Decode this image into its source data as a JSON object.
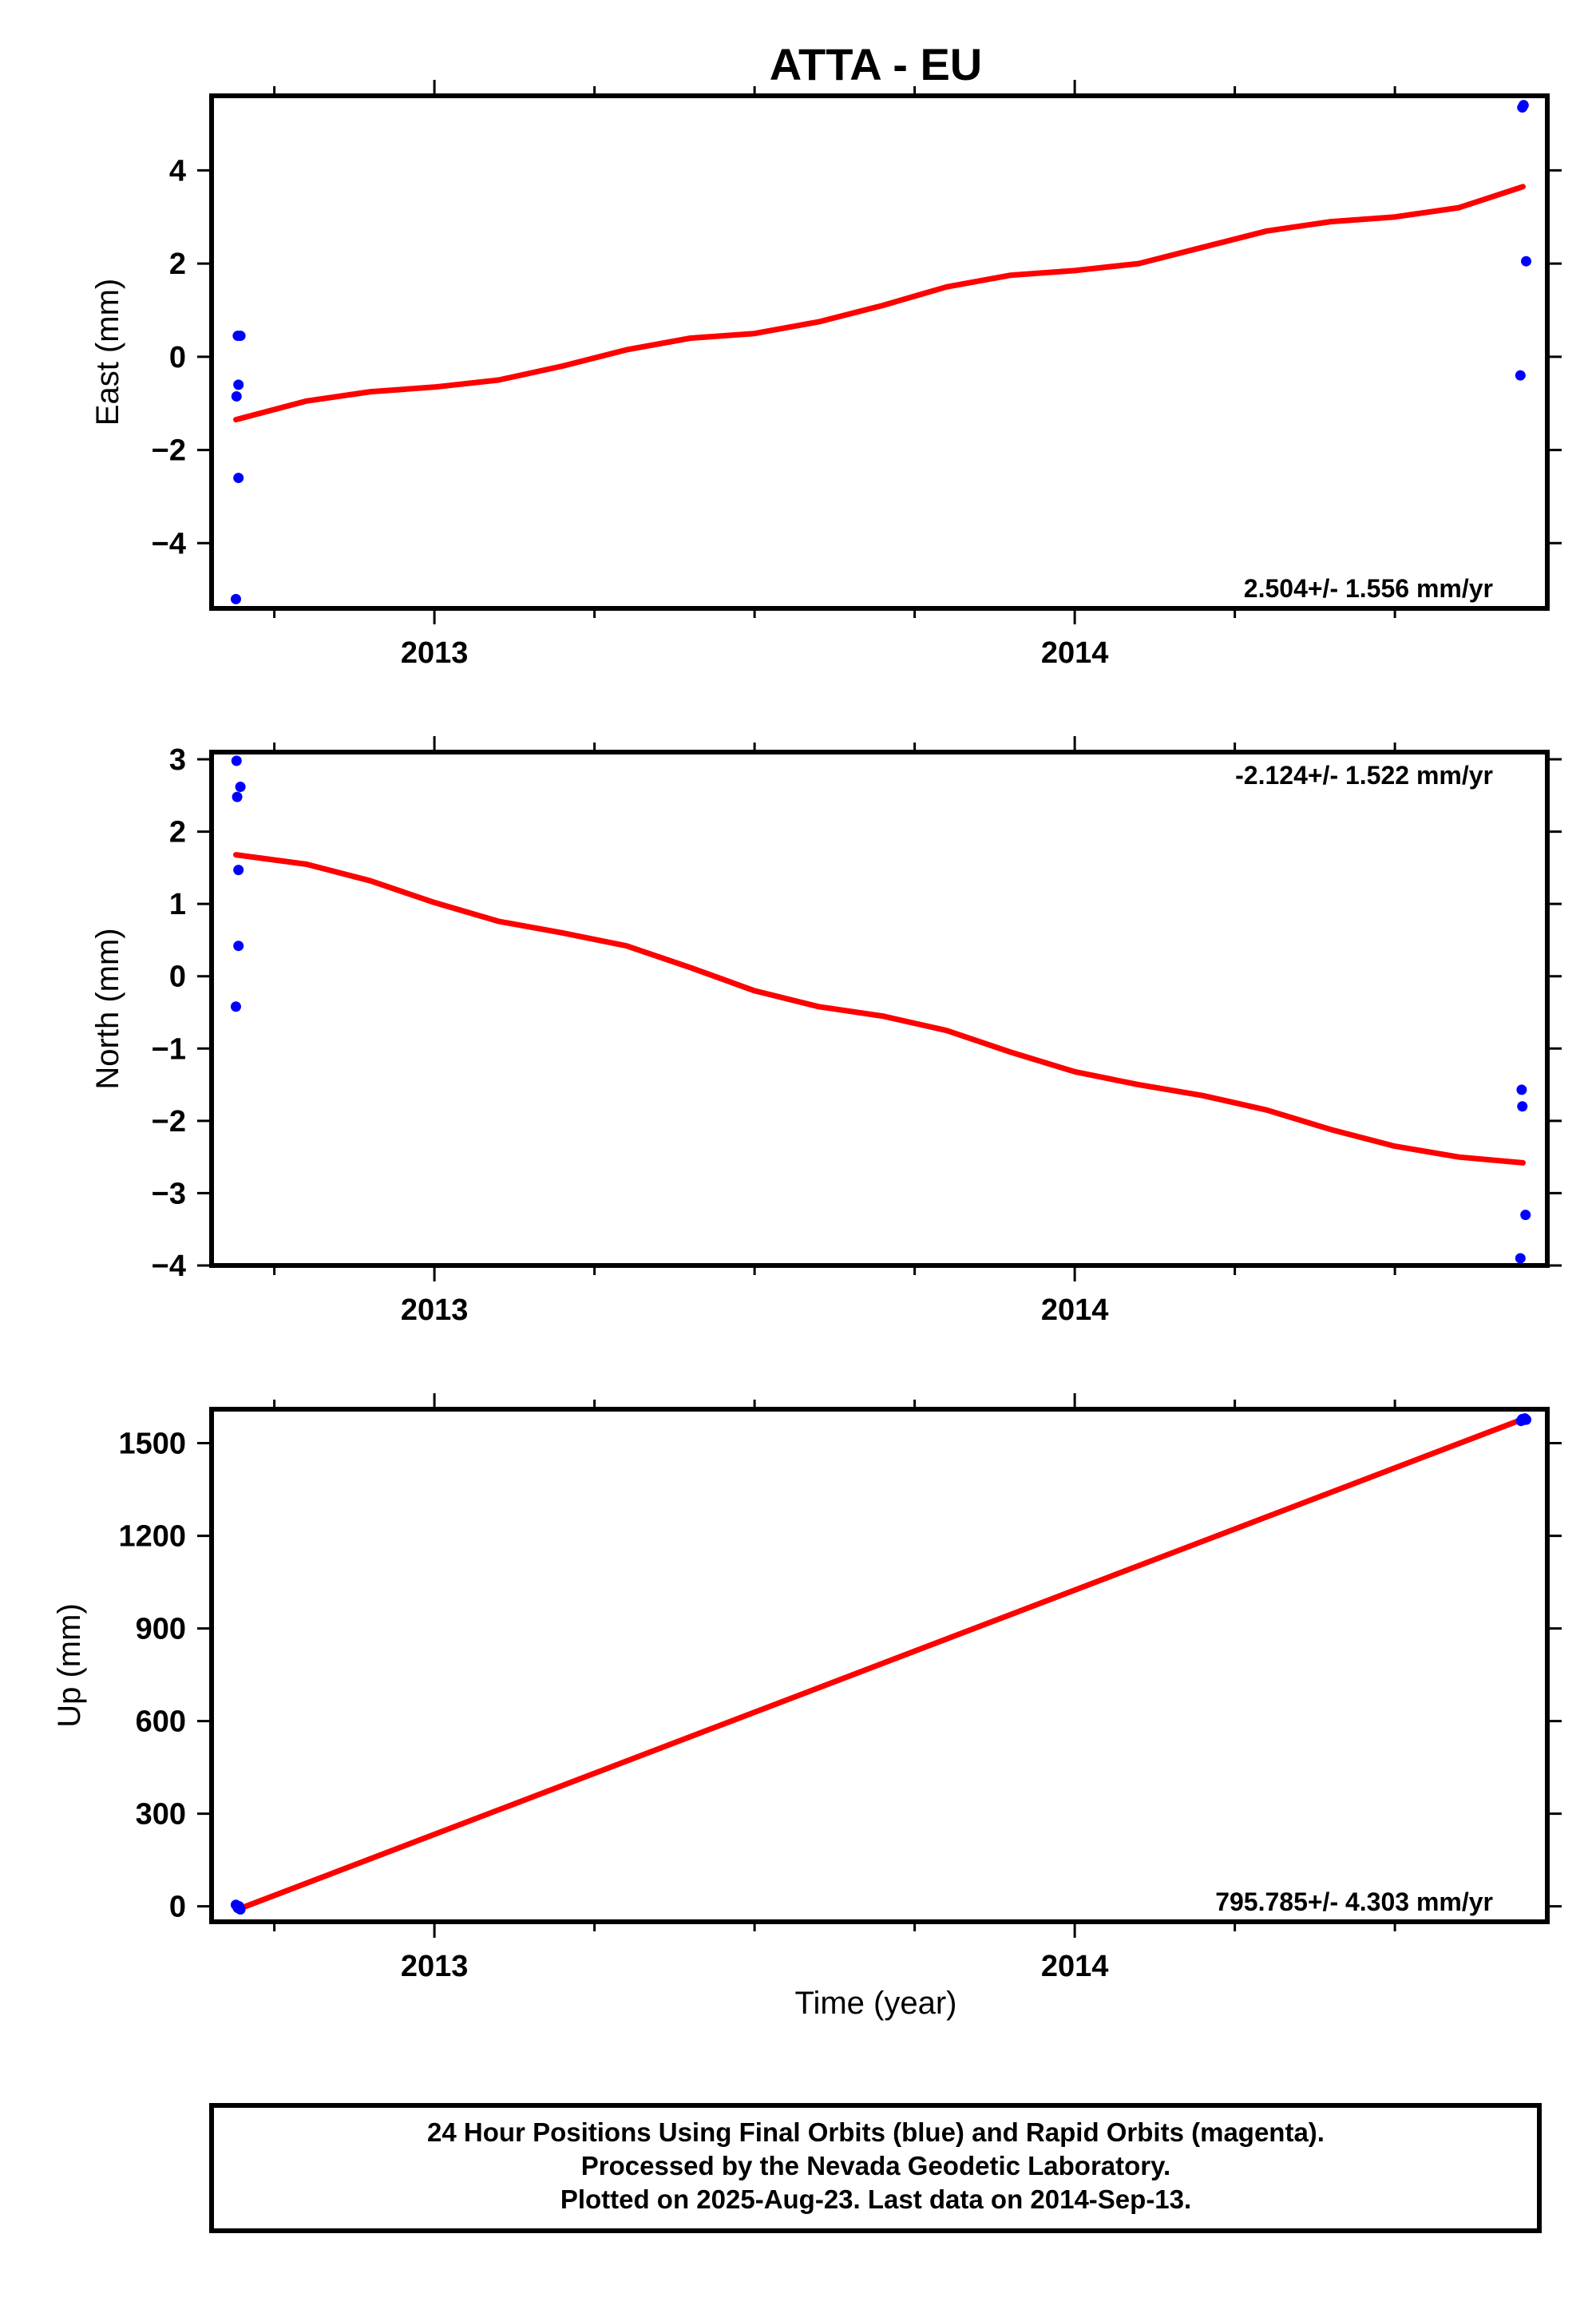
{
  "title": "ATTA - EU",
  "footer": {
    "lines": [
      "24 Hour Positions Using Final Orbits (blue) and Rapid Orbits (magenta).",
      "Processed by the Nevada Geodetic Laboratory.",
      "Plotted on 2025-Aug-23. Last data on 2014-Sep-13."
    ]
  },
  "xlabel": "Time (year)",
  "colors": {
    "points": "#0000ff",
    "fit": "#ff0000",
    "frame": "#000000"
  },
  "chart_data": [
    {
      "type": "scatter",
      "ylabel": "East (mm)",
      "xlim": [
        2012.652,
        2014.738
      ],
      "ylim": [
        -5.4,
        5.6
      ],
      "xticks": [
        2013,
        2014
      ],
      "yticks": [
        -4,
        -2,
        0,
        2,
        4
      ],
      "yticklabels": [
        "−4",
        "−2",
        "0",
        "2",
        "4"
      ],
      "rate_label": "2.504+/- 1.556 mm/yr",
      "rate_position": "bottom-right",
      "points": {
        "x": [
          2012.69,
          2012.691,
          2012.693,
          2012.694,
          2012.694,
          2012.697,
          2014.696,
          2014.699,
          2014.701,
          2014.705
        ],
        "y": [
          -5.2,
          -0.85,
          0.45,
          -2.6,
          -0.6,
          0.45,
          -0.4,
          5.35,
          5.4,
          2.05
        ]
      },
      "fit": {
        "x": [
          2012.69,
          2012.8,
          2012.9,
          2013.0,
          2013.1,
          2013.2,
          2013.3,
          2013.4,
          2013.5,
          2013.6,
          2013.7,
          2013.8,
          2013.9,
          2014.0,
          2014.1,
          2014.2,
          2014.3,
          2014.4,
          2014.5,
          2014.6,
          2014.7
        ],
        "y": [
          -1.35,
          -0.95,
          -0.75,
          -0.65,
          -0.5,
          -0.2,
          0.15,
          0.4,
          0.5,
          0.75,
          1.1,
          1.5,
          1.75,
          1.85,
          2.0,
          2.35,
          2.7,
          2.9,
          3.0,
          3.2,
          3.65
        ]
      }
    },
    {
      "type": "scatter",
      "ylabel": "North (mm)",
      "xlim": [
        2012.652,
        2014.738
      ],
      "ylim": [
        -4.0,
        3.1
      ],
      "xticks": [
        2013,
        2014
      ],
      "yticks": [
        -4,
        -3,
        -2,
        -1,
        0,
        1,
        2,
        3
      ],
      "yticklabels": [
        "−4",
        "−3",
        "−2",
        "−1",
        "0",
        "1",
        "2",
        "3"
      ],
      "rate_label": "-2.124+/- 1.522 mm/yr",
      "rate_position": "top-right",
      "points": {
        "x": [
          2012.69,
          2012.691,
          2012.692,
          2012.694,
          2012.694,
          2012.697,
          2014.696,
          2014.698,
          2014.699,
          2014.704
        ],
        "y": [
          -0.42,
          2.98,
          2.48,
          0.42,
          1.47,
          2.62,
          -3.9,
          -1.57,
          -1.8,
          -3.3
        ]
      },
      "fit": {
        "x": [
          2012.69,
          2012.8,
          2012.9,
          2013.0,
          2013.1,
          2013.2,
          2013.3,
          2013.4,
          2013.5,
          2013.6,
          2013.7,
          2013.8,
          2013.9,
          2014.0,
          2014.1,
          2014.2,
          2014.3,
          2014.4,
          2014.5,
          2014.6,
          2014.7
        ],
        "y": [
          1.68,
          1.55,
          1.32,
          1.02,
          0.76,
          0.6,
          0.42,
          0.12,
          -0.2,
          -0.42,
          -0.55,
          -0.75,
          -1.05,
          -1.32,
          -1.5,
          -1.65,
          -1.85,
          -2.12,
          -2.35,
          -2.5,
          -2.58
        ]
      }
    },
    {
      "type": "scatter",
      "ylabel": "Up (mm)",
      "xlim": [
        2012.652,
        2014.738
      ],
      "ylim": [
        -50,
        1610
      ],
      "xticks": [
        2013,
        2014
      ],
      "yticks": [
        0,
        300,
        600,
        900,
        1200,
        1500
      ],
      "yticklabels": [
        "0",
        "300",
        "600",
        "900",
        "1200",
        "1500"
      ],
      "rate_label": "795.785+/- 4.303 mm/yr",
      "rate_position": "bottom-right",
      "points": {
        "x": [
          2012.69,
          2012.693,
          2012.695,
          2012.697,
          2014.697,
          2014.699,
          2014.701,
          2014.703,
          2014.705
        ],
        "y": [
          5,
          -5,
          0,
          -10,
          1572,
          1578,
          1575,
          1580,
          1576
        ]
      },
      "fit": {
        "x": [
          2012.695,
          2014.7
        ],
        "y": [
          -8,
          1578
        ]
      }
    }
  ]
}
